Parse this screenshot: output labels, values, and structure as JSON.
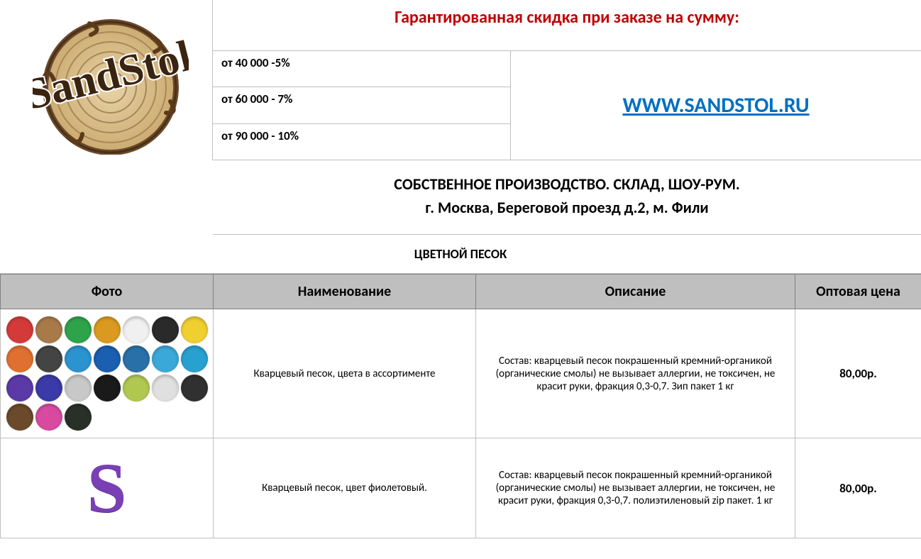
{
  "logo": {
    "brand_text": "SandStol"
  },
  "discount": {
    "title": "Гарантированная скидка при заказе на сумму:",
    "title_color": "#c00000",
    "tiers": [
      "от 40 000 -5%",
      "от 60 000 - 7%",
      "от 90 000 - 10%"
    ]
  },
  "site": {
    "label": "WWW.SANDSTOL.RU",
    "link_color": "#0070c0"
  },
  "company_info": {
    "line1": "СОБСТВЕННОЕ ПРОИЗВОДСТВО. СКЛАД, ШОУ-РУМ.",
    "line2": "г. Москва, Береговой проезд д.2, м. Фили"
  },
  "section_title": "ЦВЕТНОЙ ПЕСОК",
  "table": {
    "columns": [
      "Фото",
      "Наименование",
      "Описание",
      "Оптовая цена"
    ],
    "col_widths": [
      "300px",
      "370px",
      "450px",
      "178px"
    ],
    "header_bg": "#bfbfbf",
    "border_color": "#bfbfbf",
    "rows": [
      {
        "photo_kind": "palette",
        "palette_colors": [
          "#d43a3a",
          "#a87a4a",
          "#2fa34a",
          "#d99a1f",
          "#f0f0f0",
          "#2a2a2a",
          "#f0cf30",
          "#e07030",
          "#444444",
          "#2a93d0",
          "#1a5fb0",
          "#2a70a8",
          "#3aa8d8",
          "#28a0d0",
          "#5b3aa8",
          "#3a3aa8",
          "#c8c8c8",
          "#1a1a1a",
          "#b0c850",
          "#e0e0e0",
          "#303030",
          "#6a4a2a",
          "#d84aa0",
          "#283028"
        ],
        "name": "Кварцевый песок, цвета в ассортименте",
        "description": "Состав: кварцевый песок покрашенный кремний-органикой (органические смолы) не вызывает аллергии, не токсичен, не красит руки, фракция 0,3-0,7. Зип пакет 1 кг",
        "price": "80,00р."
      },
      {
        "photo_kind": "purple_s",
        "name": "Кварцевый песок, цвет фиолетовый.",
        "description": "Состав: кварцевый песок покрашенный кремний-органикой (органические смолы) не вызывает аллергии, не токсичен, не красит руки, фракция 0,3-0,7. полиэтиленовый zip пакет. 1 кг",
        "price": "80,00р."
      }
    ]
  },
  "colors": {
    "background": "#ffffff",
    "text": "#000000",
    "grid_border": "#bfbfbf",
    "header_border": "#808080"
  }
}
